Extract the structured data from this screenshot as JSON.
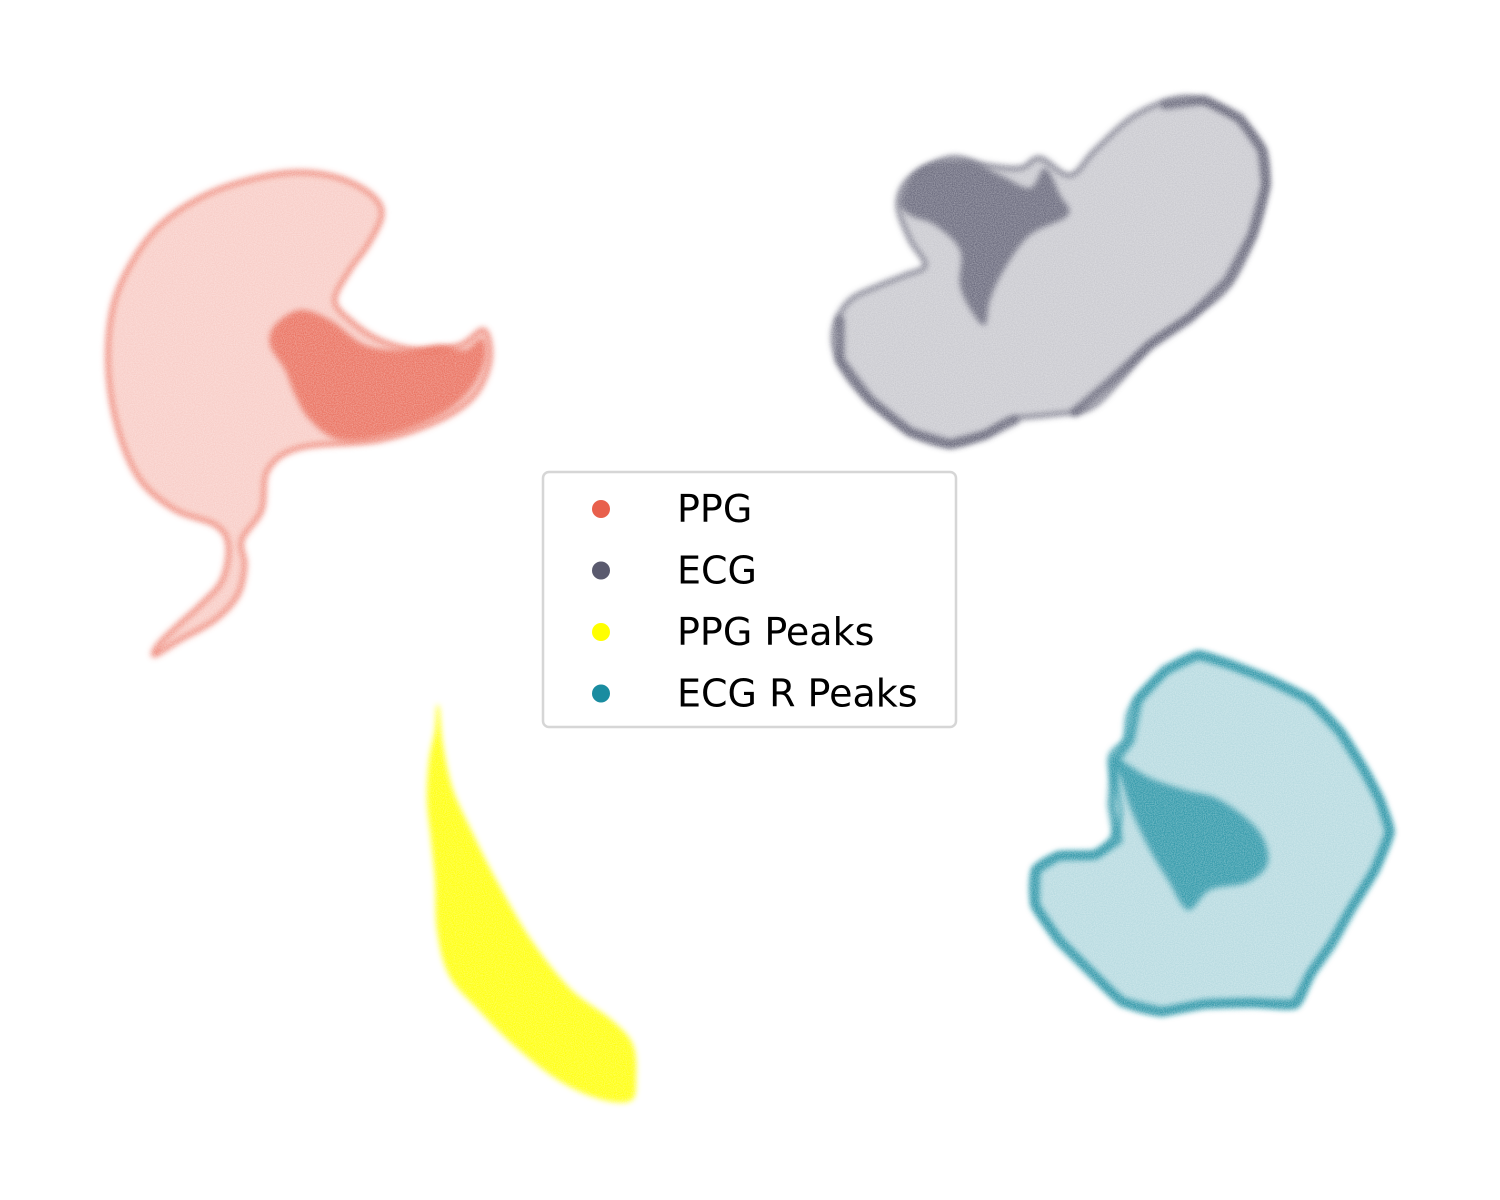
{
  "chart_data": {
    "type": "scatter",
    "title": "",
    "xlabel": "",
    "ylabel": "",
    "axes_visible": false,
    "grid": false,
    "legend_placement": "center",
    "series": [
      {
        "name": "PPG",
        "color": "#E8604C",
        "regions": [
          {
            "kind": "outline",
            "points": [
              [
                155,
                655
              ],
              [
                180,
                640
              ],
              [
                215,
                620
              ],
              [
                238,
                595
              ],
              [
                245,
                565
              ],
              [
                242,
                540
              ],
              [
                262,
                510
              ],
              [
                268,
                470
              ],
              [
                300,
                448
              ],
              [
                380,
                440
              ],
              [
                440,
                420
              ],
              [
                475,
                395
              ],
              [
                490,
                360
              ],
              [
                484,
                330
              ],
              [
                460,
                345
              ],
              [
                420,
                350
              ],
              [
                380,
                340
              ],
              [
                350,
                320
              ],
              [
                335,
                300
              ],
              [
                350,
                270
              ],
              [
                368,
                245
              ],
              [
                382,
                215
              ],
              [
                372,
                195
              ],
              [
                340,
                178
              ],
              [
                300,
                172
              ],
              [
                255,
                178
              ],
              [
                205,
                195
              ],
              [
                160,
                225
              ],
              [
                130,
                265
              ],
              [
                112,
                310
              ],
              [
                108,
                370
              ],
              [
                118,
                430
              ],
              [
                140,
                480
              ],
              [
                175,
                510
              ],
              [
                215,
                525
              ],
              [
                228,
                545
              ],
              [
                222,
                580
              ],
              [
                200,
                605
              ],
              [
                178,
                625
              ],
              [
                158,
                645
              ]
            ]
          },
          {
            "kind": "core",
            "points": [
              [
                275,
                325
              ],
              [
                300,
                310
              ],
              [
                330,
                320
              ],
              [
                365,
                345
              ],
              [
                405,
                350
              ],
              [
                440,
                345
              ],
              [
                465,
                350
              ],
              [
                482,
                338
              ],
              [
                485,
                360
              ],
              [
                470,
                390
              ],
              [
                440,
                415
              ],
              [
                390,
                435
              ],
              [
                340,
                440
              ],
              [
                310,
                420
              ],
              [
                295,
                395
              ],
              [
                285,
                370
              ],
              [
                270,
                345
              ]
            ]
          }
        ]
      },
      {
        "name": "ECG",
        "color": "#5A5A6E",
        "regions": [
          {
            "kind": "outline",
            "points": [
              [
                835,
                325
              ],
              [
                850,
                300
              ],
              [
                880,
                285
              ],
              [
                905,
                275
              ],
              [
                925,
                265
              ],
              [
                910,
                240
              ],
              [
                898,
                205
              ],
              [
                910,
                178
              ],
              [
                950,
                158
              ],
              [
                985,
                165
              ],
              [
                1020,
                168
              ],
              [
                1040,
                158
              ],
              [
                1070,
                175
              ],
              [
                1095,
                150
              ],
              [
                1135,
                115
              ],
              [
                1180,
                98
              ],
              [
                1215,
                105
              ],
              [
                1245,
                125
              ],
              [
                1265,
                155
              ],
              [
                1265,
                195
              ],
              [
                1250,
                245
              ],
              [
                1225,
                290
              ],
              [
                1185,
                320
              ],
              [
                1150,
                345
              ],
              [
                1120,
                380
              ],
              [
                1090,
                408
              ],
              [
                1050,
                415
              ],
              [
                1010,
                420
              ],
              [
                985,
                435
              ],
              [
                950,
                445
              ],
              [
                915,
                435
              ],
              [
                880,
                410
              ],
              [
                850,
                380
              ],
              [
                835,
                350
              ]
            ]
          },
          {
            "kind": "core",
            "points": [
              [
                900,
                200
              ],
              [
                920,
                168
              ],
              [
                965,
                160
              ],
              [
                1000,
                175
              ],
              [
                1030,
                188
              ],
              [
                1045,
                168
              ],
              [
                1060,
                195
              ],
              [
                1068,
                215
              ],
              [
                1030,
                235
              ],
              [
                1005,
                268
              ],
              [
                990,
                300
              ],
              [
                985,
                325
              ],
              [
                972,
                312
              ],
              [
                960,
                285
              ],
              [
                960,
                250
              ],
              [
                935,
                225
              ],
              [
                910,
                215
              ]
            ]
          },
          {
            "kind": "edge",
            "points": [
              [
                1165,
                105
              ],
              [
                1205,
                100
              ],
              [
                1240,
                118
              ],
              [
                1262,
                150
              ],
              [
                1266,
                185
              ],
              [
                1252,
                235
              ],
              [
                1228,
                280
              ],
              [
                1190,
                318
              ],
              [
                1150,
                345
              ],
              [
                1110,
                382
              ],
              [
                1075,
                412
              ]
            ]
          },
          {
            "kind": "edge",
            "points": [
              [
                840,
                320
              ],
              [
                840,
                360
              ],
              [
                870,
                400
              ],
              [
                910,
                432
              ],
              [
                950,
                444
              ],
              [
                985,
                435
              ],
              [
                1015,
                420
              ]
            ]
          }
        ]
      },
      {
        "name": "PPG Peaks",
        "color": "#FFFF00",
        "regions": [
          {
            "kind": "outline",
            "points": [
              [
                438,
                706
              ],
              [
                442,
                745
              ],
              [
                452,
                790
              ],
              [
                470,
                830
              ],
              [
                495,
                880
              ],
              [
                530,
                940
              ],
              [
                570,
                990
              ],
              [
                610,
                1020
              ],
              [
                632,
                1045
              ],
              [
                635,
                1080
              ],
              [
                630,
                1100
              ],
              [
                600,
                1098
              ],
              [
                560,
                1080
              ],
              [
                515,
                1045
              ],
              [
                480,
                1010
              ],
              [
                450,
                975
              ],
              [
                438,
                930
              ],
              [
                436,
                880
              ],
              [
                432,
                840
              ],
              [
                428,
                800
              ],
              [
                430,
                760
              ],
              [
                436,
                730
              ]
            ]
          }
        ]
      },
      {
        "name": "ECG R Peaks",
        "color": "#1A8CA0",
        "regions": [
          {
            "kind": "outline",
            "points": [
              [
                1035,
                870
              ],
              [
                1060,
                855
              ],
              [
                1100,
                852
              ],
              [
                1120,
                815
              ],
              [
                1110,
                760
              ],
              [
                1125,
                740
              ],
              [
                1130,
                710
              ],
              [
                1155,
                680
              ],
              [
                1195,
                655
              ],
              [
                1230,
                665
              ],
              [
                1270,
                680
              ],
              [
                1310,
                700
              ],
              [
                1340,
                730
              ],
              [
                1365,
                770
              ],
              [
                1380,
                800
              ],
              [
                1390,
                832
              ],
              [
                1375,
                870
              ],
              [
                1350,
                910
              ],
              [
                1330,
                945
              ],
              [
                1310,
                975
              ],
              [
                1295,
                1005
              ],
              [
                1250,
                1003
              ],
              [
                1200,
                1005
              ],
              [
                1155,
                1012
              ],
              [
                1120,
                1000
              ],
              [
                1090,
                970
              ],
              [
                1060,
                940
              ],
              [
                1035,
                905
              ]
            ]
          },
          {
            "kind": "core",
            "points": [
              [
                1115,
                758
              ],
              [
                1150,
                778
              ],
              [
                1185,
                790
              ],
              [
                1220,
                800
              ],
              [
                1258,
                830
              ],
              [
                1268,
                862
              ],
              [
                1248,
                882
              ],
              [
                1210,
                890
              ],
              [
                1188,
                910
              ],
              [
                1168,
                880
              ],
              [
                1150,
                850
              ],
              [
                1132,
                812
              ],
              [
                1122,
                782
              ]
            ]
          },
          {
            "kind": "edge",
            "points": [
              [
                1115,
                760
              ],
              [
                1112,
                805
              ],
              [
                1118,
                840
              ],
              [
                1095,
                855
              ],
              [
                1058,
                856
              ],
              [
                1036,
                870
              ],
              [
                1035,
                905
              ],
              [
                1058,
                940
              ],
              [
                1090,
                972
              ],
              [
                1122,
                1002
              ],
              [
                1162,
                1012
              ],
              [
                1205,
                1004
              ],
              [
                1252,
                1003
              ],
              [
                1295,
                1004
              ],
              [
                1312,
                972
              ],
              [
                1332,
                944
              ],
              [
                1352,
                908
              ],
              [
                1375,
                870
              ],
              [
                1390,
                832
              ],
              [
                1380,
                800
              ],
              [
                1364,
                770
              ],
              [
                1340,
                732
              ],
              [
                1310,
                700
              ],
              [
                1270,
                680
              ],
              [
                1230,
                664
              ],
              [
                1198,
                655
              ],
              [
                1165,
                670
              ],
              [
                1138,
                700
              ],
              [
                1130,
                740
              ],
              [
                1115,
                760
              ]
            ]
          }
        ]
      }
    ],
    "legend": [
      {
        "label": "PPG",
        "color": "#E8604C"
      },
      {
        "label": "ECG",
        "color": "#5A5A6E"
      },
      {
        "label": "PPG Peaks",
        "color": "#FFFF00"
      },
      {
        "label": "ECG R Peaks",
        "color": "#1A8CA0"
      }
    ]
  }
}
